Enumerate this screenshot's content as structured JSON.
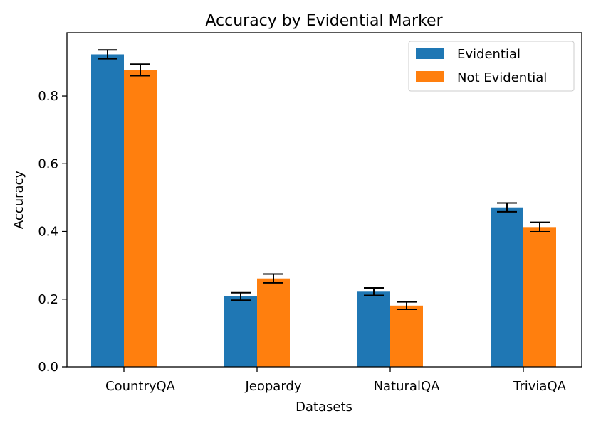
{
  "chart_data": {
    "type": "bar",
    "title": "Accuracy by Evidential Marker",
    "xlabel": "Datasets",
    "ylabel": "Accuracy",
    "categories": [
      "CountryQA",
      "Jeopardy",
      "NaturalQA",
      "TriviaQA"
    ],
    "ylim": [
      0,
      0.987
    ],
    "yticks": [
      "0.0",
      "0.2",
      "0.4",
      "0.6",
      "0.8"
    ],
    "grid": false,
    "legend_position": "top-right",
    "series": [
      {
        "name": "Evidential",
        "color": "#1f77b4",
        "values": [
          0.923,
          0.208,
          0.222,
          0.471
        ],
        "errors": [
          0.013,
          0.011,
          0.011,
          0.013
        ]
      },
      {
        "name": "Not Evidential",
        "color": "#ff7f0e",
        "values": [
          0.877,
          0.261,
          0.181,
          0.413
        ],
        "errors": [
          0.017,
          0.013,
          0.011,
          0.014
        ]
      }
    ]
  }
}
